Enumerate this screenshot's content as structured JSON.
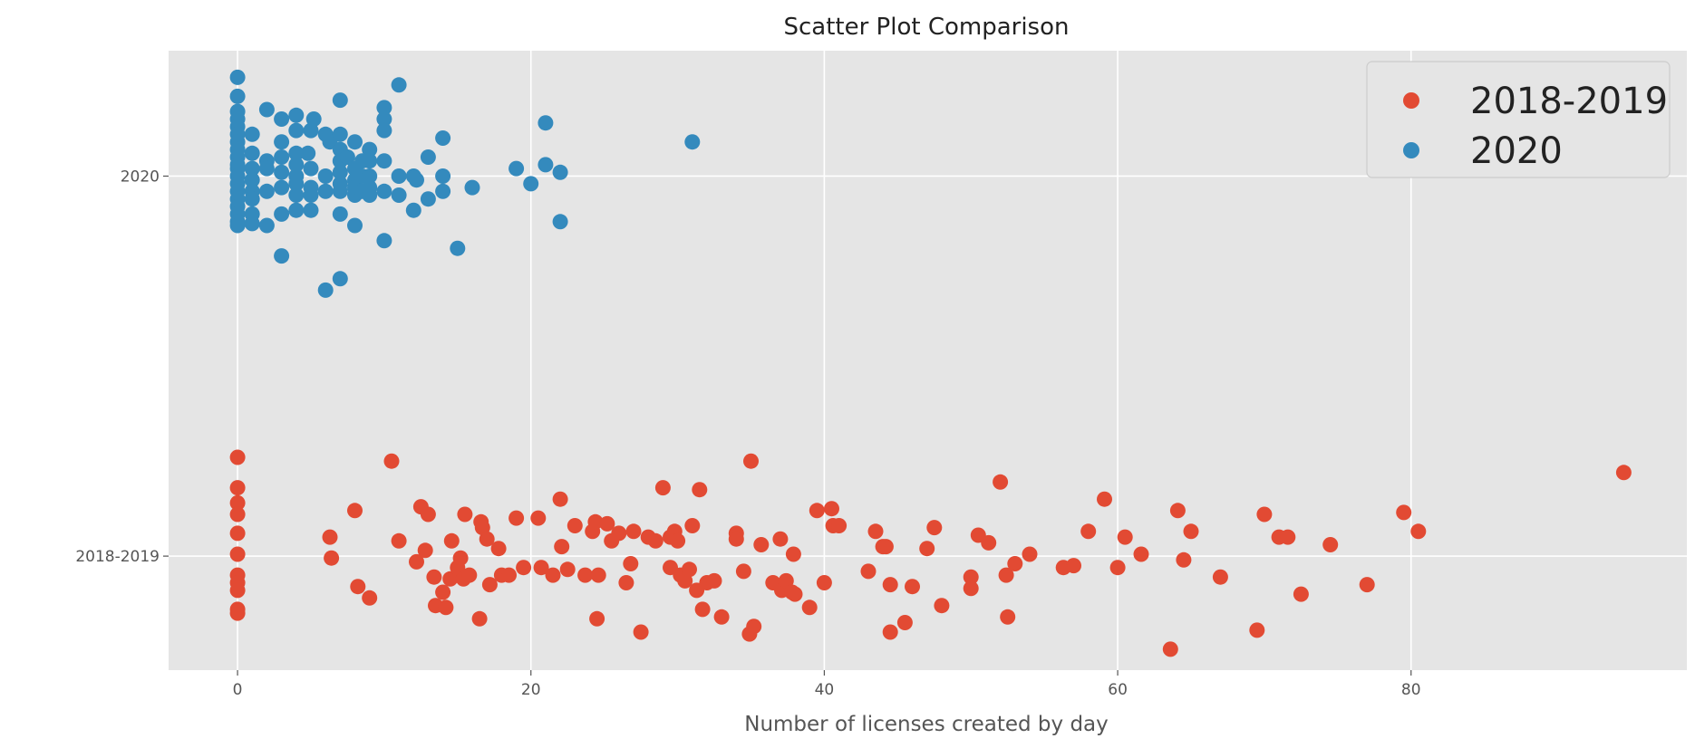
{
  "chart_data": {
    "type": "scatter",
    "title": "Scatter Plot Comparison",
    "xlabel": "Number of licenses created by day",
    "ylabel": "",
    "xlim": [
      -4.7,
      98.8
    ],
    "ylim": [
      -0.3,
      1.33
    ],
    "x_ticks": [
      0,
      20,
      40,
      60,
      80
    ],
    "x_tick_labels": [
      "0",
      "20",
      "40",
      "60",
      "80"
    ],
    "y_ticks": [
      0,
      1
    ],
    "y_tick_labels": [
      "2018-2019",
      "2020"
    ],
    "categories": [
      "2018-2019",
      "2020"
    ],
    "grid": true,
    "legend_position": "top-right",
    "background": "#e5e5e5",
    "series": [
      {
        "name": "2018-2019",
        "color": "#e24a33",
        "y_category": "2018-2019",
        "points": [
          [
            0,
            0.26
          ],
          [
            0,
            0.18
          ],
          [
            0,
            0.14
          ],
          [
            0,
            0.11
          ],
          [
            0,
            0.06
          ],
          [
            0,
            0.005
          ],
          [
            0,
            -0.05
          ],
          [
            0,
            -0.07
          ],
          [
            0,
            -0.09
          ],
          [
            0,
            -0.14
          ],
          [
            0,
            -0.15
          ],
          [
            6.3,
            0.05
          ],
          [
            6.4,
            -0.005
          ],
          [
            8,
            0.12
          ],
          [
            8.2,
            -0.08
          ],
          [
            9,
            -0.11
          ],
          [
            10.5,
            0.25
          ],
          [
            11,
            0.04
          ],
          [
            12.2,
            -0.015
          ],
          [
            12.5,
            0.13
          ],
          [
            12.8,
            0.015
          ],
          [
            13,
            0.11
          ],
          [
            13.4,
            -0.055
          ],
          [
            13.5,
            -0.13
          ],
          [
            14,
            -0.095
          ],
          [
            14.2,
            -0.135
          ],
          [
            14.5,
            -0.06
          ],
          [
            14.6,
            0.04
          ],
          [
            15,
            -0.03
          ],
          [
            15.2,
            -0.005
          ],
          [
            15.4,
            -0.06
          ],
          [
            15.5,
            0.11
          ],
          [
            15.8,
            -0.05
          ],
          [
            16.5,
            -0.165
          ],
          [
            16.6,
            0.09
          ],
          [
            16.7,
            0.075
          ],
          [
            17,
            0.045
          ],
          [
            17.2,
            -0.075
          ],
          [
            17.8,
            0.02
          ],
          [
            18,
            -0.05
          ],
          [
            18.5,
            -0.05
          ],
          [
            19,
            0.1
          ],
          [
            19.5,
            -0.03
          ],
          [
            20.5,
            0.1
          ],
          [
            20.7,
            -0.03
          ],
          [
            21.5,
            -0.05
          ],
          [
            22,
            0.15
          ],
          [
            22.5,
            -0.035
          ],
          [
            22.1,
            0.025
          ],
          [
            23,
            0.08
          ],
          [
            23.7,
            -0.05
          ],
          [
            24.2,
            0.065
          ],
          [
            24.4,
            0.09
          ],
          [
            24.5,
            -0.165
          ],
          [
            24.6,
            -0.05
          ],
          [
            25.5,
            0.04
          ],
          [
            25.2,
            0.085
          ],
          [
            26,
            0.06
          ],
          [
            26.5,
            -0.07
          ],
          [
            26.8,
            -0.02
          ],
          [
            27,
            0.065
          ],
          [
            27.5,
            -0.2
          ],
          [
            28,
            0.05
          ],
          [
            28.5,
            0.04
          ],
          [
            29,
            0.18
          ],
          [
            29.5,
            0.05
          ],
          [
            29.5,
            -0.03
          ],
          [
            29.8,
            0.065
          ],
          [
            30,
            0.04
          ],
          [
            30.2,
            -0.05
          ],
          [
            30.5,
            -0.065
          ],
          [
            30.8,
            -0.035
          ],
          [
            31,
            0.08
          ],
          [
            31.3,
            -0.09
          ],
          [
            31.5,
            0.175
          ],
          [
            31.7,
            -0.14
          ],
          [
            32,
            -0.07
          ],
          [
            32.5,
            -0.065
          ],
          [
            33,
            -0.16
          ],
          [
            34,
            0.06
          ],
          [
            34,
            0.045
          ],
          [
            34.5,
            -0.04
          ],
          [
            34.9,
            -0.205
          ],
          [
            35,
            0.25
          ],
          [
            35.2,
            -0.185
          ],
          [
            35.7,
            0.03
          ],
          [
            36.5,
            -0.07
          ],
          [
            37,
            0.045
          ],
          [
            37.1,
            -0.09
          ],
          [
            37.4,
            -0.065
          ],
          [
            37.8,
            -0.095
          ],
          [
            37.9,
            0.005
          ],
          [
            38,
            -0.1
          ],
          [
            39,
            -0.135
          ],
          [
            39.5,
            0.12
          ],
          [
            40,
            -0.07
          ],
          [
            40.5,
            0.125
          ],
          [
            40.6,
            0.08
          ],
          [
            41,
            0.08
          ],
          [
            43,
            -0.04
          ],
          [
            43.5,
            0.065
          ],
          [
            44,
            0.025
          ],
          [
            44.2,
            0.025
          ],
          [
            44.5,
            -0.075
          ],
          [
            44.5,
            -0.2
          ],
          [
            45.5,
            -0.175
          ],
          [
            46,
            -0.08
          ],
          [
            47,
            0.02
          ],
          [
            47.5,
            0.075
          ],
          [
            48,
            -0.13
          ],
          [
            50,
            -0.055
          ],
          [
            50,
            -0.085
          ],
          [
            50.5,
            0.055
          ],
          [
            51.2,
            0.035
          ],
          [
            52,
            0.195
          ],
          [
            52.4,
            -0.05
          ],
          [
            52.5,
            -0.16
          ],
          [
            53,
            -0.02
          ],
          [
            54,
            0.005
          ],
          [
            56.3,
            -0.03
          ],
          [
            57,
            -0.025
          ],
          [
            58,
            0.065
          ],
          [
            59.1,
            0.15
          ],
          [
            60,
            -0.03
          ],
          [
            60.5,
            0.05
          ],
          [
            61.6,
            0.005
          ],
          [
            63.6,
            -0.245
          ],
          [
            64.1,
            0.12
          ],
          [
            64.5,
            -0.01
          ],
          [
            65,
            0.065
          ],
          [
            67,
            -0.055
          ],
          [
            69.5,
            -0.195
          ],
          [
            70,
            0.11
          ],
          [
            71,
            0.05
          ],
          [
            71.6,
            0.05
          ],
          [
            72.5,
            -0.1
          ],
          [
            74.5,
            0.03
          ],
          [
            77,
            -0.075
          ],
          [
            79.5,
            0.115
          ],
          [
            80.5,
            0.065
          ],
          [
            94.5,
            0.22
          ]
        ]
      },
      {
        "name": "2020",
        "color": "#348abd",
        "y_category": "2020",
        "points": [
          [
            0,
            1.26
          ],
          [
            0,
            1.21
          ],
          [
            0,
            1.17
          ],
          [
            0,
            1.15
          ],
          [
            0,
            1.13
          ],
          [
            0,
            1.11
          ],
          [
            0,
            1.09
          ],
          [
            0,
            1.07
          ],
          [
            0,
            1.05
          ],
          [
            0,
            1.03
          ],
          [
            0,
            1.02
          ],
          [
            0,
            1.0
          ],
          [
            0,
            0.98
          ],
          [
            0,
            0.96
          ],
          [
            0,
            0.94
          ],
          [
            0,
            0.92
          ],
          [
            0,
            0.9
          ],
          [
            0,
            0.88
          ],
          [
            0,
            0.87
          ],
          [
            1,
            1.11
          ],
          [
            1,
            1.06
          ],
          [
            1,
            1.02
          ],
          [
            1,
            0.99
          ],
          [
            1,
            0.96
          ],
          [
            1,
            0.94
          ],
          [
            1,
            0.9
          ],
          [
            1,
            0.875
          ],
          [
            2,
            1.175
          ],
          [
            2,
            1.04
          ],
          [
            2,
            1.02
          ],
          [
            2,
            0.96
          ],
          [
            2,
            0.87
          ],
          [
            3,
            1.15
          ],
          [
            3,
            1.09
          ],
          [
            3,
            1.05
          ],
          [
            3,
            1.01
          ],
          [
            3,
            0.97
          ],
          [
            3,
            0.9
          ],
          [
            3,
            0.79
          ],
          [
            4,
            1.16
          ],
          [
            4,
            1.12
          ],
          [
            4,
            1.06
          ],
          [
            4,
            1.03
          ],
          [
            4,
            1.0
          ],
          [
            4,
            0.98
          ],
          [
            4,
            0.95
          ],
          [
            4,
            0.91
          ],
          [
            4.8,
            1.06
          ],
          [
            5,
            1.12
          ],
          [
            5,
            1.02
          ],
          [
            5,
            0.97
          ],
          [
            5,
            0.95
          ],
          [
            5,
            0.91
          ],
          [
            5.2,
            1.15
          ],
          [
            6,
            1.11
          ],
          [
            6,
            1.0
          ],
          [
            6,
            0.96
          ],
          [
            6,
            0.7
          ],
          [
            6.3,
            1.09
          ],
          [
            7,
            1.2
          ],
          [
            7,
            1.11
          ],
          [
            7,
            1.07
          ],
          [
            7,
            1.04
          ],
          [
            7,
            1.01
          ],
          [
            7,
            0.98
          ],
          [
            7,
            0.96
          ],
          [
            7,
            0.9
          ],
          [
            7,
            0.73
          ],
          [
            7.5,
            1.05
          ],
          [
            8,
            1.09
          ],
          [
            8,
            1.02
          ],
          [
            8,
            0.99
          ],
          [
            8,
            0.97
          ],
          [
            8,
            0.95
          ],
          [
            8,
            0.87
          ],
          [
            8.5,
            1.04
          ],
          [
            8.5,
            1.0
          ],
          [
            8.5,
            0.96
          ],
          [
            9,
            1.07
          ],
          [
            9,
            1.04
          ],
          [
            9,
            1.0
          ],
          [
            9,
            0.97
          ],
          [
            9,
            0.95
          ],
          [
            10,
            1.18
          ],
          [
            10,
            1.15
          ],
          [
            10,
            1.12
          ],
          [
            10,
            1.04
          ],
          [
            10,
            0.96
          ],
          [
            10,
            0.83
          ],
          [
            11,
            1.24
          ],
          [
            11,
            1.0
          ],
          [
            11,
            0.95
          ],
          [
            12,
            1.0
          ],
          [
            12,
            0.91
          ],
          [
            12.2,
            0.99
          ],
          [
            13,
            0.94
          ],
          [
            13,
            1.05
          ],
          [
            14,
            1.1
          ],
          [
            14,
            1.0
          ],
          [
            14,
            0.96
          ],
          [
            15,
            0.81
          ],
          [
            16,
            0.97
          ],
          [
            19,
            1.02
          ],
          [
            20,
            0.98
          ],
          [
            21,
            1.14
          ],
          [
            21,
            1.03
          ],
          [
            22,
            1.01
          ],
          [
            22,
            0.88
          ],
          [
            31,
            1.09
          ]
        ]
      }
    ]
  }
}
